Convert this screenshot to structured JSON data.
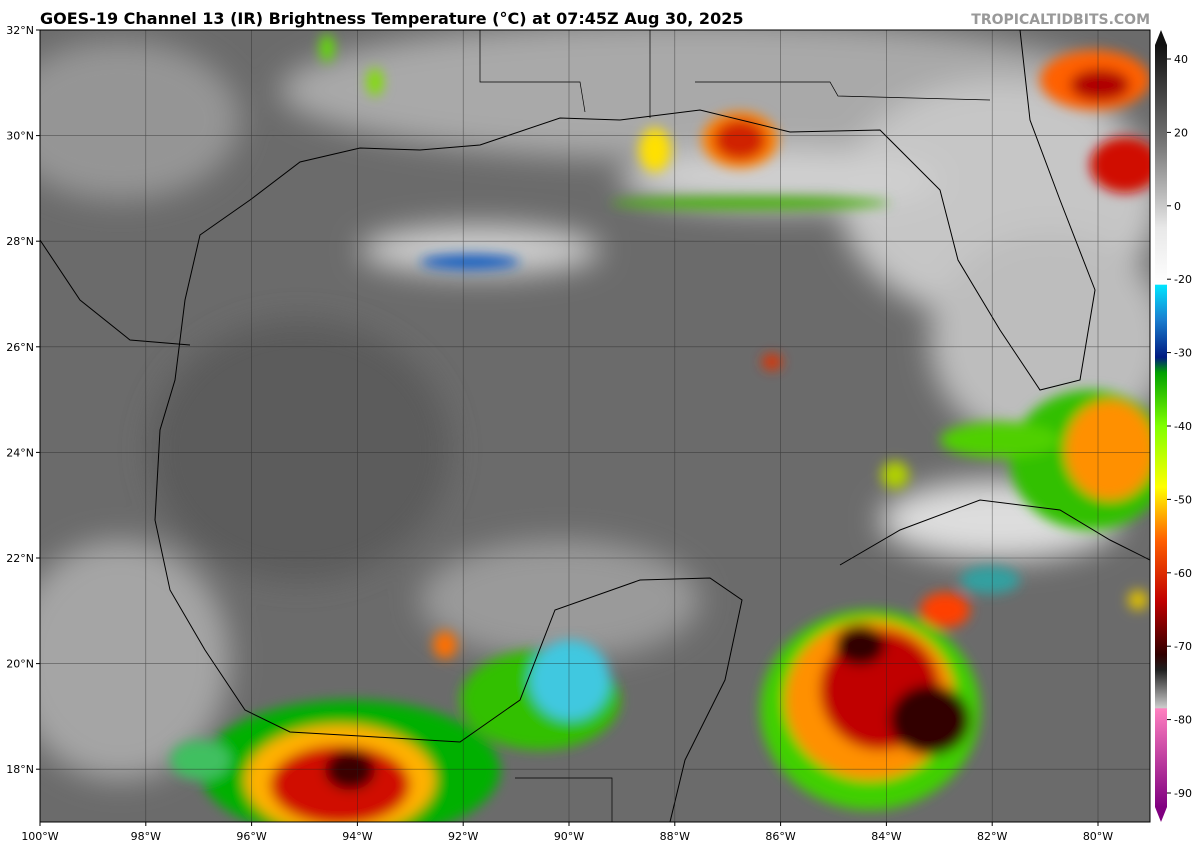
{
  "header": {
    "title": "GOES-19 Channel 13 (IR) Brightness Temperature (°C) at 07:45Z Aug 30, 2025",
    "credit": "TROPICALTIDBITS.COM"
  },
  "map": {
    "lat_labels": [
      "32°N",
      "30°N",
      "28°N",
      "26°N",
      "24°N",
      "22°N",
      "20°N",
      "18°N"
    ],
    "lon_labels": [
      "100°W",
      "98°W",
      "96°W",
      "94°W",
      "92°W",
      "90°W",
      "88°W",
      "86°W",
      "84°W",
      "82°W",
      "80°W"
    ]
  },
  "colorbar": {
    "ticks": [
      40,
      20,
      0,
      -20,
      -30,
      -40,
      -50,
      -60,
      -70,
      -80,
      -90
    ]
  }
}
